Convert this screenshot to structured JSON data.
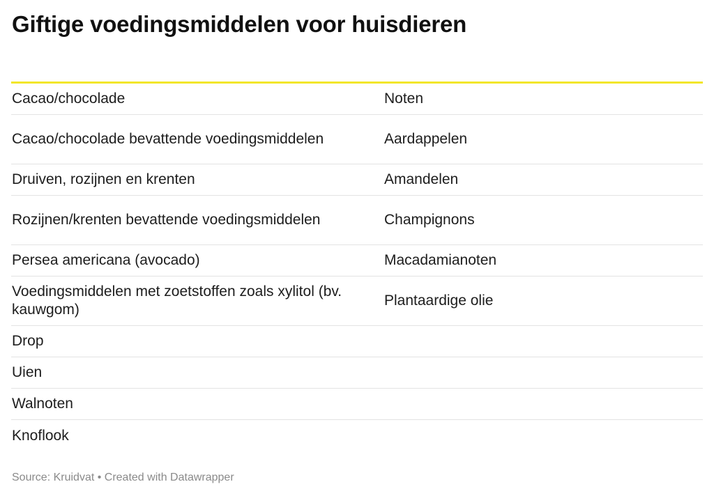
{
  "title": "Giftige voedingsmiddelen voor huisdieren",
  "table": {
    "rows": [
      {
        "c1": "Cacao/chocolade",
        "c2": "Noten"
      },
      {
        "c1": "Cacao/chocolade bevattende voedingsmiddelen",
        "c2": "Aardappelen"
      },
      {
        "c1": "Druiven, rozijnen en krenten",
        "c2": "Amandelen"
      },
      {
        "c1": "Rozijnen/krenten bevattende voedingsmiddelen",
        "c2": "Champignons"
      },
      {
        "c1": "Persea americana (avocado)",
        "c2": "Macadamianoten"
      },
      {
        "c1": "Voedingsmiddelen met zoetstoffen zoals xylitol (bv. kauwgom)",
        "c2": "Plantaardige olie"
      },
      {
        "c1": "Drop",
        "c2": ""
      },
      {
        "c1": "Uien",
        "c2": ""
      },
      {
        "c1": "Walnoten",
        "c2": ""
      },
      {
        "c1": "Knoflook",
        "c2": ""
      }
    ]
  },
  "footer": {
    "source": "Source: Kruidvat • Created with Datawrapper"
  },
  "colors": {
    "accent_line": "#f2e62a",
    "row_divider": "#e3e3e3",
    "source_text": "#8a8a8a"
  }
}
